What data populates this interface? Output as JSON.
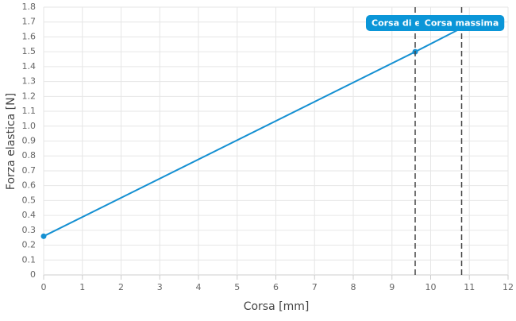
{
  "chart_data": {
    "type": "line",
    "x_label": "Corsa [mm]",
    "y_label": "Forza elastica [N]",
    "x": [
      0,
      9.6,
      10.8
    ],
    "series": [
      {
        "color": "#1590d2",
        "values": [
          0.26,
          1.5,
          1.66
        ]
      }
    ],
    "xlim": [
      0,
      12
    ],
    "xticks": [
      0,
      1,
      2,
      3,
      4,
      5,
      6,
      7,
      8,
      9,
      10,
      11,
      12
    ],
    "ylim": [
      0,
      1.8
    ],
    "yticks": [
      0,
      0.1,
      0.2,
      0.3,
      0.4,
      0.5,
      0.6,
      0.7,
      0.8,
      0.9,
      {
        "value": 1,
        "label": "1.0"
      },
      1.1,
      1.2,
      1.3,
      1.4,
      1.5,
      1.6,
      1.7,
      1.8
    ],
    "grid": true,
    "annotations": [
      {
        "x": 9.6,
        "label": "Corsa di esp"
      },
      {
        "x": 10.8,
        "label": "Corsa massima"
      }
    ]
  }
}
